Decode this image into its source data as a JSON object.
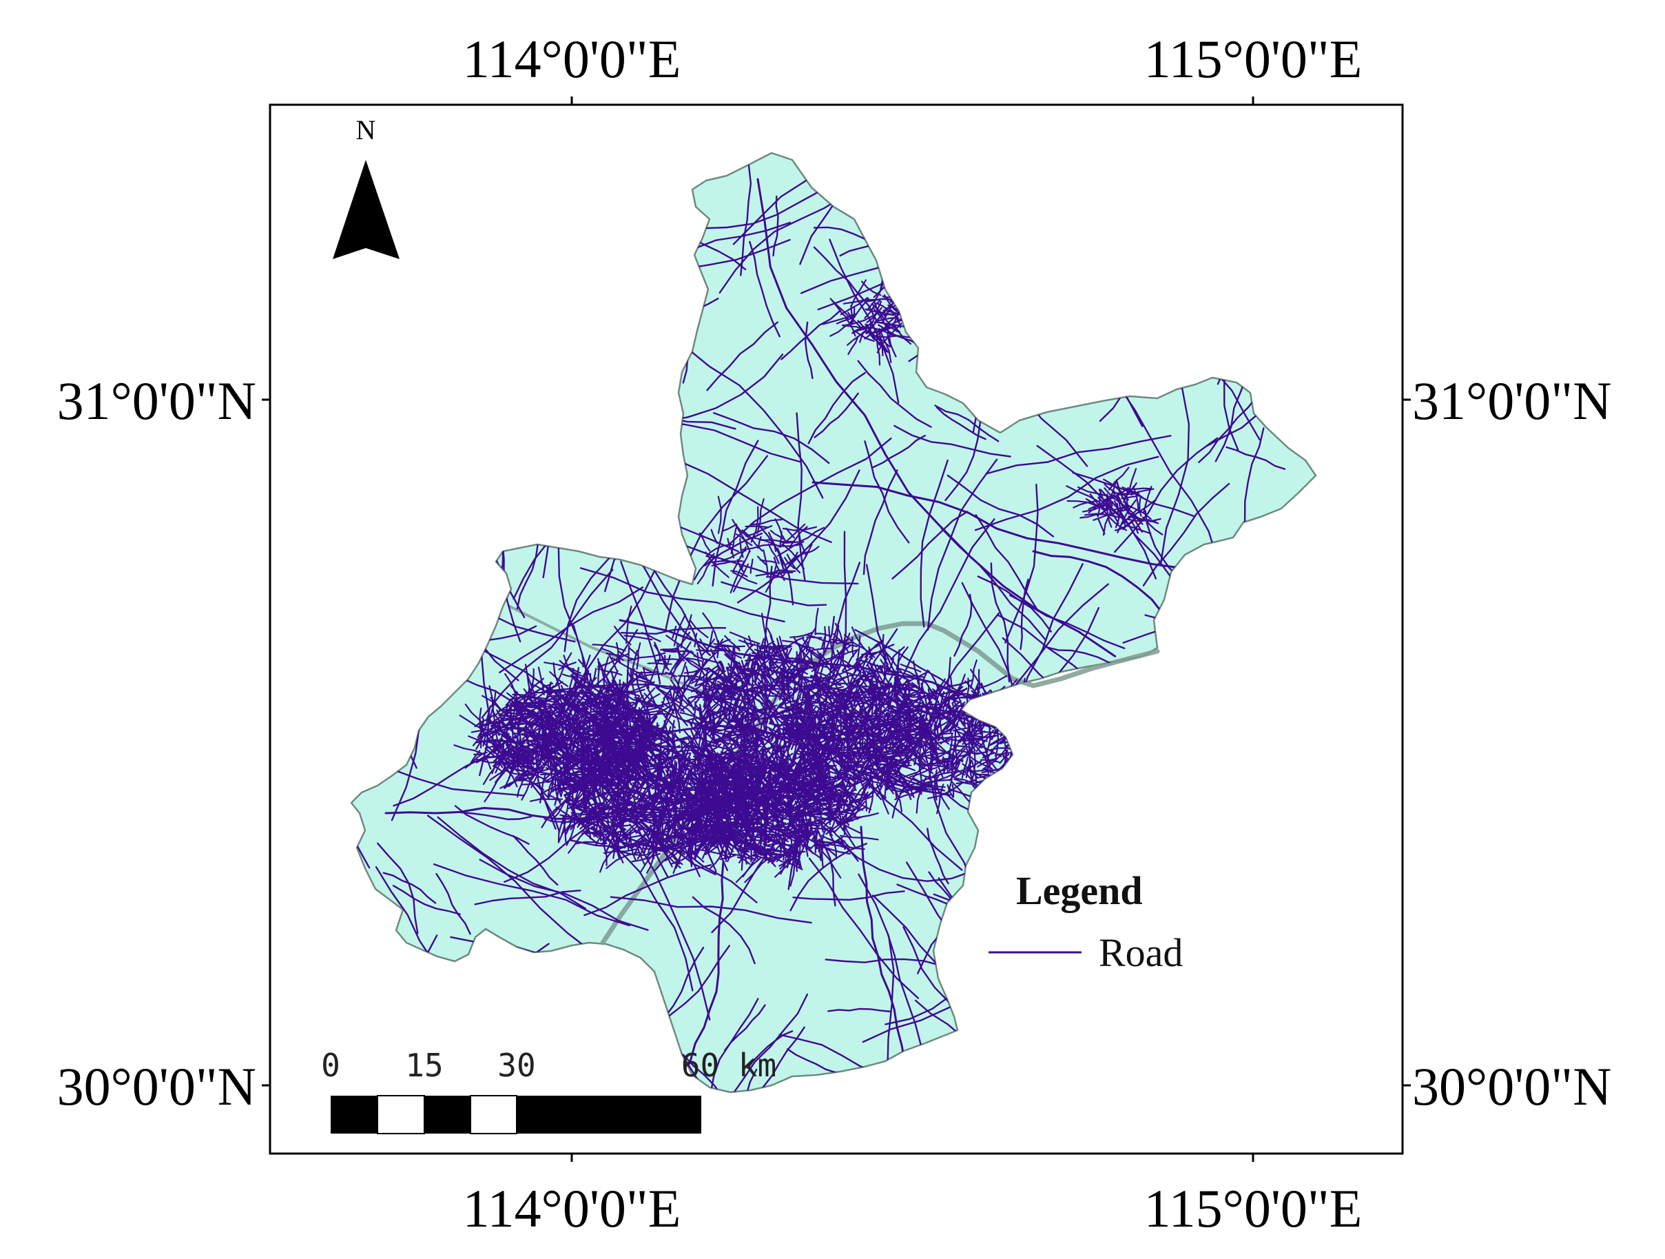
{
  "map": {
    "lon_labels": [
      "114°0'0\"E",
      "115°0'0\"E"
    ],
    "lat_labels": [
      "31°0'0\"N",
      "30°0'0\"N"
    ],
    "north_arrow": {
      "label": "N"
    },
    "scale_bar": {
      "ticks": [
        "0",
        "15",
        "30",
        "60 km"
      ]
    },
    "legend": {
      "title": "Legend",
      "items": [
        {
          "label": "Road",
          "color": "#3d0a91"
        }
      ]
    },
    "colors": {
      "land_fill": "#c2f5ea",
      "land_outline": "#6d8a80",
      "road": "#3d0a91",
      "frame": "#000000"
    }
  }
}
